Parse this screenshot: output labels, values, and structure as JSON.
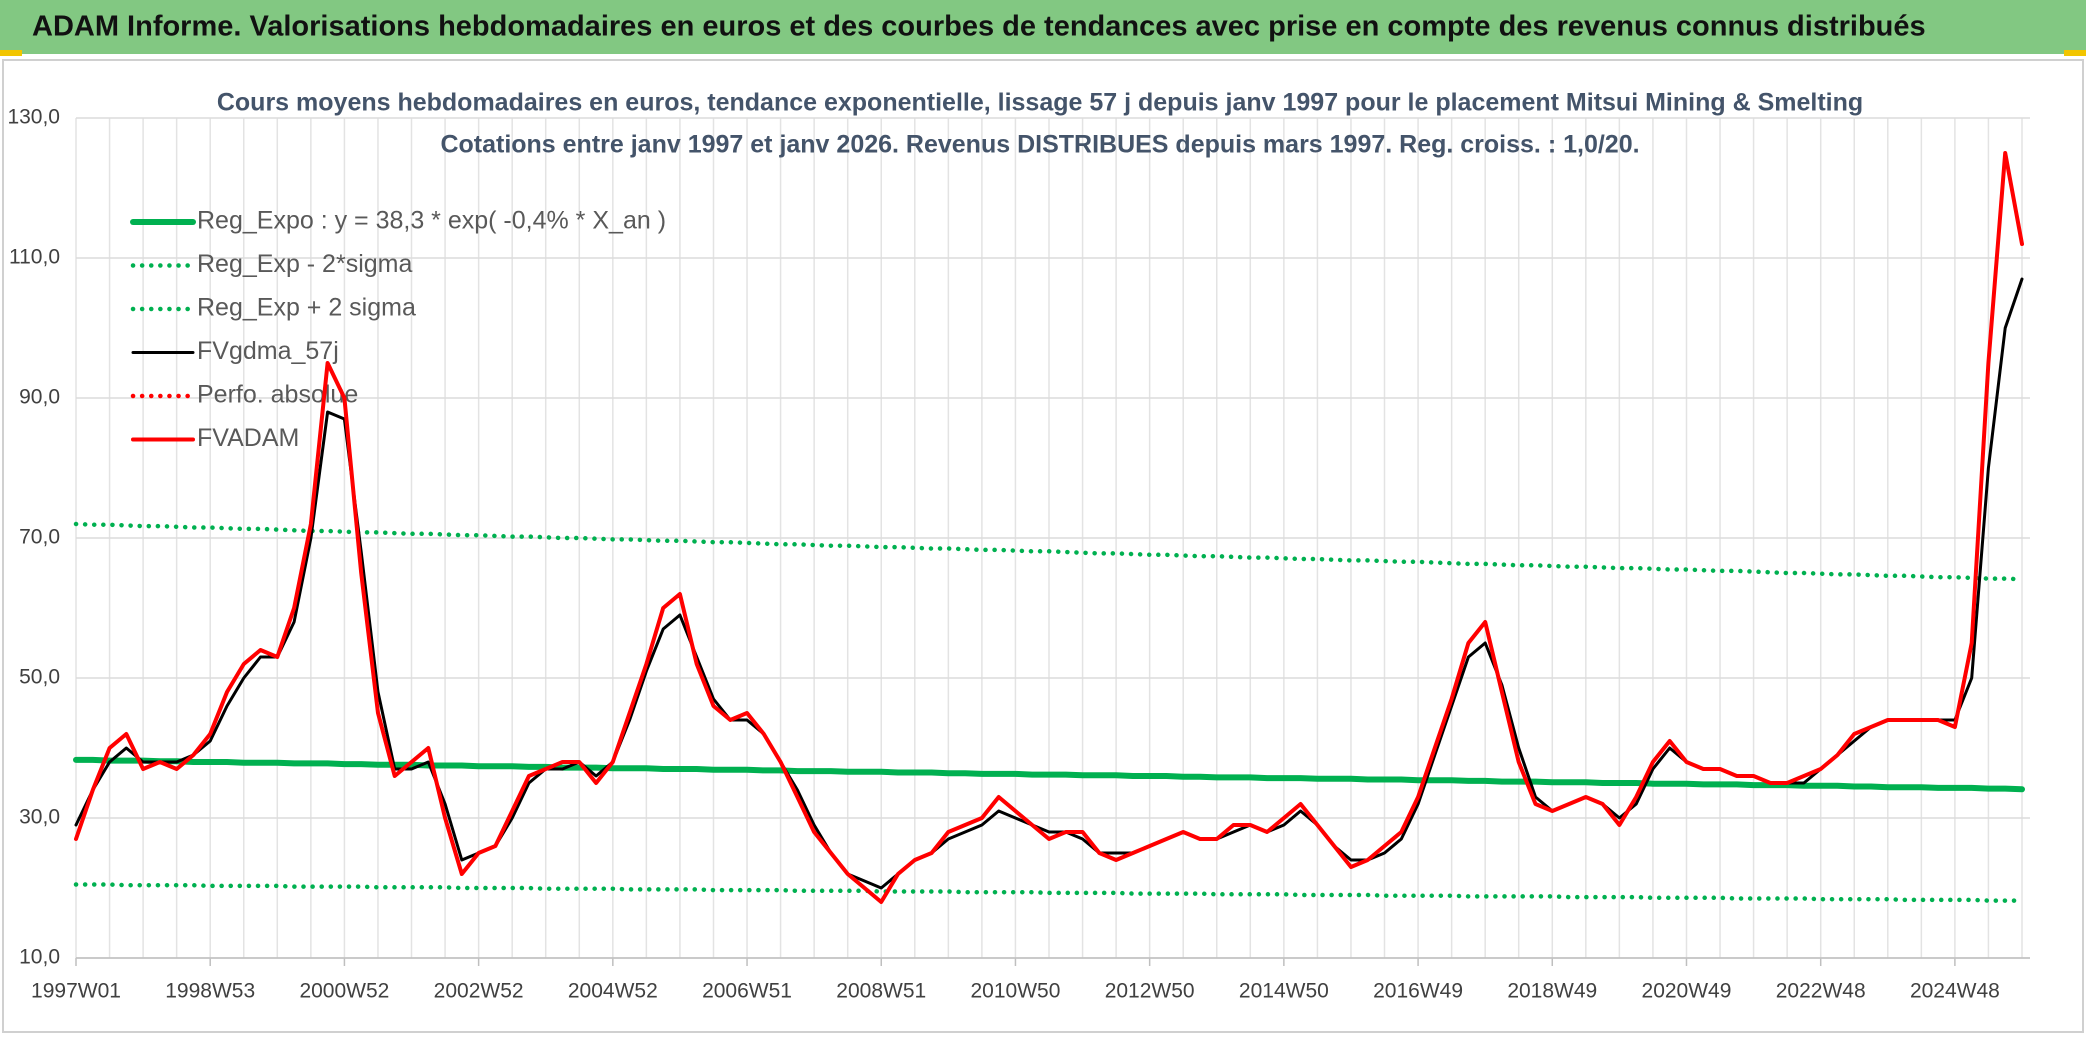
{
  "header": {
    "title": "ADAM Informe. Valorisations hebdomadaires en euros et des courbes de tendances avec prise en compte des revenus connus distribués"
  },
  "chart_data": {
    "type": "line",
    "title": "Cours moyens hebdomadaires en euros, tendance exponentielle, lissage 57 j depuis janv 1997 pour le placement Mitsui Mining & Smelting",
    "subtitle": "Cotations entre janv 1997 et janv 2026. Revenus DISTRIBUES depuis mars 1997. Reg. croiss. : 1,0/20.",
    "categories": [
      "1997W01",
      null,
      null,
      null,
      null,
      null,
      null,
      null,
      "1998W53",
      null,
      null,
      null,
      null,
      null,
      null,
      null,
      "2000W52",
      null,
      null,
      null,
      null,
      null,
      null,
      null,
      "2002W52",
      null,
      null,
      null,
      null,
      null,
      null,
      null,
      "2004W52",
      null,
      null,
      null,
      null,
      null,
      null,
      null,
      "2006W51",
      null,
      null,
      null,
      null,
      null,
      null,
      null,
      "2008W51",
      null,
      null,
      null,
      null,
      null,
      null,
      null,
      "2010W50",
      null,
      null,
      null,
      null,
      null,
      null,
      null,
      "2012W50",
      null,
      null,
      null,
      null,
      null,
      null,
      null,
      "2014W50",
      null,
      null,
      null,
      null,
      null,
      null,
      null,
      "2016W49",
      null,
      null,
      null,
      null,
      null,
      null,
      null,
      "2018W49",
      null,
      null,
      null,
      null,
      null,
      null,
      null,
      "2020W49",
      null,
      null,
      null,
      null,
      null,
      null,
      null,
      "2022W48",
      null,
      null,
      null,
      null,
      null,
      null,
      null,
      "2024W48",
      null,
      null,
      null,
      null
    ],
    "ylim": [
      10,
      130
    ],
    "yticks": [
      {
        "value": 10,
        "label": "10,0"
      },
      {
        "value": 30,
        "label": "30,0"
      },
      {
        "value": 50,
        "label": "50,0"
      },
      {
        "value": 70,
        "label": "70,0"
      },
      {
        "value": 90,
        "label": "90,0"
      },
      {
        "value": 110,
        "label": "110,0"
      },
      {
        "value": 130,
        "label": "130,0"
      }
    ],
    "grid": true,
    "legend": "top-left",
    "series": [
      {
        "name": "Reg_Expo : y = 38,3 * exp( -0,4% *  X_an )",
        "color": "#00b050",
        "style": "solid",
        "values": [
          38.3,
          38.3,
          38.2,
          38.2,
          38.2,
          38.1,
          38.1,
          38.0,
          38.0,
          38.0,
          37.9,
          37.9,
          37.9,
          37.8,
          37.8,
          37.8,
          37.7,
          37.7,
          37.6,
          37.6,
          37.6,
          37.5,
          37.5,
          37.5,
          37.4,
          37.4,
          37.4,
          37.3,
          37.3,
          37.2,
          37.2,
          37.2,
          37.1,
          37.1,
          37.1,
          37.0,
          37.0,
          37.0,
          36.9,
          36.9,
          36.9,
          36.8,
          36.8,
          36.7,
          36.7,
          36.7,
          36.6,
          36.6,
          36.6,
          36.5,
          36.5,
          36.5,
          36.4,
          36.4,
          36.3,
          36.3,
          36.3,
          36.2,
          36.2,
          36.2,
          36.1,
          36.1,
          36.1,
          36.0,
          36.0,
          36.0,
          35.9,
          35.9,
          35.8,
          35.8,
          35.8,
          35.7,
          35.7,
          35.7,
          35.6,
          35.6,
          35.6,
          35.5,
          35.5,
          35.5,
          35.4,
          35.4,
          35.4,
          35.3,
          35.3,
          35.2,
          35.2,
          35.2,
          35.1,
          35.1,
          35.1,
          35.0,
          35.0,
          35.0,
          34.9,
          34.9,
          34.9,
          34.8,
          34.8,
          34.8,
          34.7,
          34.7,
          34.7,
          34.6,
          34.6,
          34.6,
          34.5,
          34.5,
          34.4,
          34.4,
          34.4,
          34.3,
          34.3,
          34.3,
          34.2,
          34.2,
          34.1
        ]
      },
      {
        "name": "Reg_Exp - 2*sigma",
        "color": "#00b050",
        "style": "dotted",
        "values": [
          20.5,
          20.5,
          20.5,
          20.4,
          20.4,
          20.4,
          20.4,
          20.4,
          20.3,
          20.3,
          20.3,
          20.3,
          20.3,
          20.2,
          20.2,
          20.2,
          20.2,
          20.2,
          20.1,
          20.1,
          20.1,
          20.1,
          20.1,
          20.0,
          20.0,
          20.0,
          20.0,
          20.0,
          19.9,
          19.9,
          19.9,
          19.9,
          19.9,
          19.8,
          19.8,
          19.8,
          19.8,
          19.8,
          19.7,
          19.7,
          19.7,
          19.7,
          19.7,
          19.6,
          19.6,
          19.6,
          19.6,
          19.6,
          19.5,
          19.5,
          19.5,
          19.5,
          19.5,
          19.4,
          19.4,
          19.4,
          19.4,
          19.4,
          19.3,
          19.3,
          19.3,
          19.3,
          19.3,
          19.2,
          19.2,
          19.2,
          19.2,
          19.2,
          19.1,
          19.1,
          19.1,
          19.1,
          19.1,
          19.0,
          19.0,
          19.0,
          19.0,
          19.0,
          18.9,
          18.9,
          18.9,
          18.9,
          18.9,
          18.8,
          18.8,
          18.8,
          18.8,
          18.8,
          18.8,
          18.7,
          18.7,
          18.7,
          18.7,
          18.7,
          18.6,
          18.6,
          18.6,
          18.6,
          18.6,
          18.5,
          18.5,
          18.5,
          18.5,
          18.5,
          18.4,
          18.4,
          18.4,
          18.4,
          18.4,
          18.3,
          18.3,
          18.3,
          18.3,
          18.3,
          18.2,
          18.2,
          18.2
        ]
      },
      {
        "name": "Reg_Exp + 2 sigma",
        "color": "#00b050",
        "style": "dotted",
        "values": [
          72.0,
          71.9,
          71.9,
          71.8,
          71.7,
          71.7,
          71.6,
          71.5,
          71.5,
          71.4,
          71.3,
          71.3,
          71.2,
          71.1,
          71.0,
          71.0,
          70.9,
          70.8,
          70.8,
          70.7,
          70.6,
          70.6,
          70.5,
          70.4,
          70.4,
          70.3,
          70.2,
          70.2,
          70.1,
          70.0,
          70.0,
          69.9,
          69.8,
          69.8,
          69.7,
          69.6,
          69.6,
          69.5,
          69.4,
          69.4,
          69.3,
          69.2,
          69.1,
          69.1,
          69.0,
          68.9,
          68.9,
          68.8,
          68.7,
          68.7,
          68.6,
          68.5,
          68.5,
          68.4,
          68.3,
          68.3,
          68.2,
          68.1,
          68.1,
          68.0,
          67.9,
          67.8,
          67.8,
          67.7,
          67.6,
          67.6,
          67.5,
          67.4,
          67.4,
          67.3,
          67.2,
          67.2,
          67.1,
          67.0,
          67.0,
          66.9,
          66.8,
          66.8,
          66.7,
          66.6,
          66.6,
          66.5,
          66.4,
          66.3,
          66.3,
          66.2,
          66.1,
          66.1,
          66.0,
          65.9,
          65.9,
          65.8,
          65.7,
          65.7,
          65.6,
          65.5,
          65.5,
          65.4,
          65.3,
          65.3,
          65.2,
          65.1,
          65.0,
          65.0,
          64.9,
          64.8,
          64.8,
          64.7,
          64.6,
          64.6,
          64.5,
          64.4,
          64.4,
          64.3,
          64.2,
          64.2,
          64.1
        ]
      },
      {
        "name": "FVgdma_57j",
        "color": "#000000",
        "style": "solid",
        "values": [
          29,
          34,
          38,
          40,
          38,
          38,
          38,
          39,
          41,
          46,
          50,
          53,
          53,
          58,
          70,
          88,
          87,
          68,
          48,
          37,
          37,
          38,
          32,
          24,
          25,
          26,
          30,
          35,
          37,
          37,
          38,
          36,
          38,
          44,
          51,
          57,
          59,
          53,
          47,
          44,
          44,
          42,
          38,
          34,
          29,
          25,
          22,
          21,
          20,
          22,
          24,
          25,
          27,
          28,
          29,
          31,
          30,
          29,
          28,
          28,
          27,
          25,
          25,
          25,
          26,
          27,
          28,
          27,
          27,
          28,
          29,
          28,
          29,
          31,
          29,
          26,
          24,
          24,
          25,
          27,
          32,
          39,
          46,
          53,
          55,
          49,
          40,
          33,
          31,
          32,
          33,
          32,
          30,
          32,
          37,
          40,
          38,
          37,
          37,
          36,
          36,
          35,
          35,
          35,
          37,
          39,
          41,
          43,
          44,
          44,
          44,
          44,
          44,
          50,
          80,
          100,
          107
        ]
      },
      {
        "name": "Perfo. absolue",
        "color": "#ff0000",
        "style": "dotted",
        "values": [
          null,
          null,
          null,
          null,
          null,
          null,
          null,
          null,
          null,
          null,
          null,
          null,
          null,
          null,
          null,
          null,
          null,
          null,
          null,
          null,
          null,
          null,
          null,
          null,
          null,
          null,
          null,
          null,
          null,
          null,
          null,
          null,
          null,
          null,
          null,
          null,
          null,
          null,
          null,
          null,
          null,
          null,
          null,
          null,
          null,
          null,
          null,
          null,
          null,
          null,
          null,
          null,
          null,
          null,
          null,
          null,
          null,
          null,
          null,
          null,
          null,
          null,
          null,
          null,
          null,
          null,
          null,
          null,
          null,
          null,
          null,
          null,
          null,
          null,
          null,
          null,
          null,
          null,
          null,
          null,
          null,
          null,
          null,
          null,
          null,
          null,
          null,
          null,
          null,
          null,
          null,
          null,
          null,
          null,
          null,
          null,
          null,
          null,
          null,
          null,
          null,
          null,
          null,
          null,
          null,
          null,
          null,
          null,
          null,
          null,
          null,
          null,
          null,
          null,
          null,
          null,
          null
        ]
      },
      {
        "name": "FVADAM",
        "color": "#ff0000",
        "style": "solid",
        "values": [
          27,
          34,
          40,
          42,
          37,
          38,
          37,
          39,
          42,
          48,
          52,
          54,
          53,
          60,
          72,
          95,
          90,
          65,
          45,
          36,
          38,
          40,
          30,
          22,
          25,
          26,
          31,
          36,
          37,
          38,
          38,
          35,
          38,
          45,
          52,
          60,
          62,
          52,
          46,
          44,
          45,
          42,
          38,
          33,
          28,
          25,
          22,
          20,
          18,
          22,
          24,
          25,
          28,
          29,
          30,
          33,
          31,
          29,
          27,
          28,
          28,
          25,
          24,
          25,
          26,
          27,
          28,
          27,
          27,
          29,
          29,
          28,
          30,
          32,
          29,
          26,
          23,
          24,
          26,
          28,
          33,
          40,
          47,
          55,
          58,
          48,
          38,
          32,
          31,
          32,
          33,
          32,
          29,
          33,
          38,
          41,
          38,
          37,
          37,
          36,
          36,
          35,
          35,
          36,
          37,
          39,
          42,
          43,
          44,
          44,
          44,
          44,
          43,
          55,
          95,
          125,
          112
        ]
      }
    ]
  }
}
